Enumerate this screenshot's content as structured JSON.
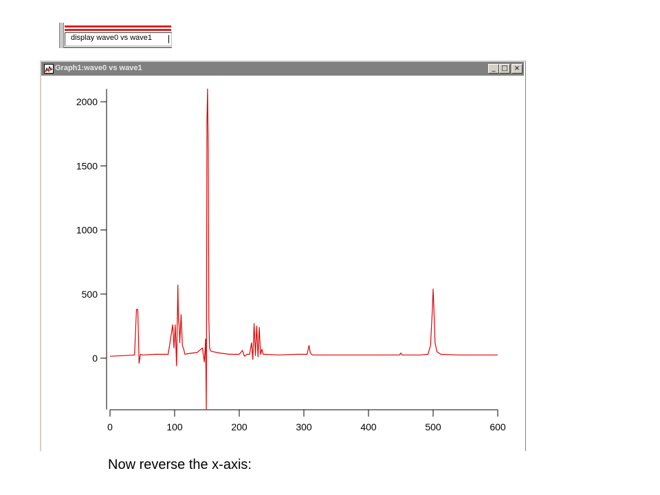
{
  "command": {
    "text": "display wave0 vs wave1"
  },
  "window": {
    "title": "Graph1:wave0 vs wave1",
    "buttons": {
      "minimize": "_",
      "maximize": "□",
      "close": "×"
    }
  },
  "chart_data": {
    "type": "line",
    "xlim": [
      0,
      600
    ],
    "ylim": [
      -400,
      2100
    ],
    "xticks": [
      0,
      100,
      200,
      300,
      400,
      500,
      600
    ],
    "yticks": [
      0,
      500,
      1000,
      1500,
      2000
    ],
    "grid": false,
    "series": [
      {
        "color": "#e00000",
        "x": [
          0,
          20,
          38,
          41,
          43,
          45,
          47,
          50,
          70,
          90,
          97,
          99,
          101,
          103,
          105,
          106,
          107,
          108,
          110,
          112,
          114,
          116,
          120,
          135,
          143,
          146,
          148,
          149,
          150,
          151,
          152,
          153,
          154,
          156,
          160,
          170,
          185,
          200,
          205,
          208,
          212,
          216,
          219,
          221,
          223,
          225,
          227,
          229,
          231,
          233,
          235,
          237,
          240,
          260,
          290,
          305,
          308,
          310,
          313,
          318,
          360,
          420,
          448,
          450,
          452,
          480,
          492,
          496,
          499,
          500,
          501,
          503,
          506,
          512,
          540,
          570,
          600
        ],
        "y": [
          15,
          20,
          25,
          380,
          380,
          -40,
          30,
          25,
          30,
          30,
          260,
          80,
          260,
          -60,
          570,
          300,
          250,
          120,
          340,
          100,
          70,
          30,
          35,
          45,
          80,
          -30,
          150,
          -400,
          1850,
          2100,
          1600,
          300,
          80,
          55,
          50,
          40,
          30,
          30,
          60,
          15,
          30,
          30,
          120,
          -10,
          270,
          20,
          250,
          10,
          240,
          30,
          70,
          30,
          30,
          25,
          30,
          30,
          100,
          40,
          25,
          25,
          25,
          25,
          25,
          40,
          25,
          25,
          30,
          100,
          400,
          540,
          420,
          120,
          50,
          30,
          25,
          25,
          25
        ]
      }
    ]
  },
  "note": "Now reverse the x-axis:"
}
